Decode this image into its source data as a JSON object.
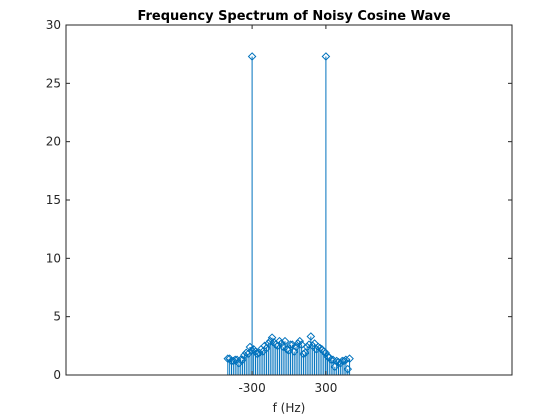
{
  "chart_data": {
    "type": "stem",
    "title": "Frequency Spectrum of Noisy Cosine Wave",
    "xlabel": "f (Hz)",
    "ylabel": "",
    "ylim": [
      0,
      30
    ],
    "xlim": [
      -500,
      500
    ],
    "yticks": [
      0,
      5,
      10,
      15,
      20,
      25,
      30
    ],
    "xticks": [
      -300,
      300
    ],
    "grid": false,
    "legend": "none",
    "color": "#0072bd",
    "marker": "diamond-open",
    "series": [
      {
        "x": [
          -497.5,
          -482.5,
          -467.5,
          -452.5,
          -437.5,
          -422.5,
          -407.5,
          -392.5,
          -377.5,
          -362.5,
          -347.5,
          -332.5,
          -317.5,
          -302.5,
          -287.5,
          -272.5,
          -257.5,
          -242.5,
          -227.5,
          -212.5,
          -197.5,
          -182.5,
          -167.5,
          -152.5,
          -137.5,
          -122.5,
          -107.5,
          -92.5,
          -77.5,
          -62.5,
          -47.5,
          -32.5,
          -17.5,
          -2.5,
          12.5,
          27.5,
          42.5,
          57.5,
          72.5,
          87.5,
          102.5,
          117.5,
          132.5,
          147.5,
          162.5,
          177.5,
          192.5,
          207.5,
          222.5,
          237.5,
          252.5,
          267.5,
          282.5,
          297.5,
          312.5,
          327.5,
          342.5,
          357.5,
          372.5,
          387.5,
          402.5,
          417.5,
          432.5,
          447.5,
          462.5,
          477.5,
          492.5
        ],
        "values": [
          1.4,
          1.4,
          1.2,
          1.2,
          1.3,
          1.3,
          1.0,
          1.3,
          1.3,
          1.7,
          1.9,
          1.8,
          2.4,
          2.1,
          2.2,
          2.0,
          1.8,
          1.9,
          2.2,
          2.0,
          2.5,
          2.3,
          2.7,
          2.9,
          3.2,
          2.8,
          2.6,
          2.5,
          2.9,
          2.7,
          2.4,
          2.9,
          2.2,
          2.1,
          2.6,
          2.6,
          2.0,
          2.4,
          2.7,
          2.9,
          2.6,
          1.8,
          1.9,
          2.4,
          2.6,
          3.3,
          2.5,
          2.7,
          2.2,
          2.4,
          2.3,
          2.2,
          2.0,
          1.9,
          1.6,
          1.5,
          1.3,
          1.3,
          0.7,
          1.2,
          1.1,
          1.0,
          1.2,
          1.2,
          1.3,
          0.5,
          1.4
        ]
      }
    ]
  }
}
